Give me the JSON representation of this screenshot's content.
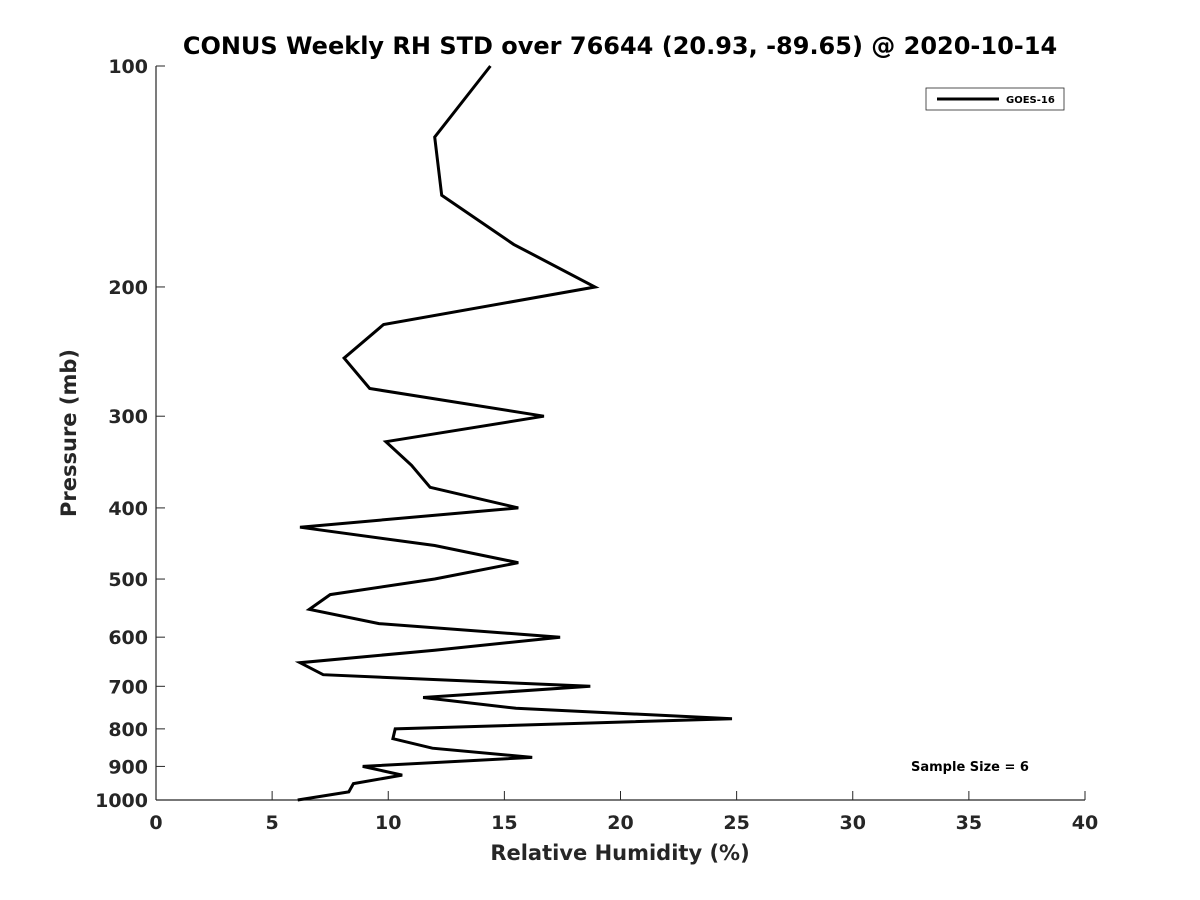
{
  "chart_data": {
    "type": "line",
    "title": "CONUS Weekly RH STD over 76644 (20.93, -89.65) @ 2020-10-14",
    "xlabel": "Relative Humidity (%)",
    "ylabel": "Pressure (mb)",
    "xlim": [
      0,
      40
    ],
    "ylim": [
      100,
      1000
    ],
    "y_scale": "log",
    "y_reversed": true,
    "x_ticks": [
      0,
      5,
      10,
      15,
      20,
      25,
      30,
      35,
      40
    ],
    "y_ticks": [
      100,
      200,
      300,
      400,
      500,
      600,
      700,
      800,
      900,
      1000
    ],
    "grid": false,
    "legend_position": "top-right",
    "series": [
      {
        "name": "GOES-16",
        "color": "#000000",
        "points": [
          {
            "p": 100,
            "rh": 14.4
          },
          {
            "p": 125,
            "rh": 12.0
          },
          {
            "p": 150,
            "rh": 12.3
          },
          {
            "p": 175,
            "rh": 15.4
          },
          {
            "p": 200,
            "rh": 18.9
          },
          {
            "p": 225,
            "rh": 9.8
          },
          {
            "p": 250,
            "rh": 8.1
          },
          {
            "p": 275,
            "rh": 9.2
          },
          {
            "p": 300,
            "rh": 16.7
          },
          {
            "p": 325,
            "rh": 9.9
          },
          {
            "p": 350,
            "rh": 11.0
          },
          {
            "p": 375,
            "rh": 11.8
          },
          {
            "p": 400,
            "rh": 15.6
          },
          {
            "p": 425,
            "rh": 6.2
          },
          {
            "p": 450,
            "rh": 12.0
          },
          {
            "p": 475,
            "rh": 15.6
          },
          {
            "p": 500,
            "rh": 12.0
          },
          {
            "p": 525,
            "rh": 7.5
          },
          {
            "p": 550,
            "rh": 6.6
          },
          {
            "p": 575,
            "rh": 9.6
          },
          {
            "p": 600,
            "rh": 17.4
          },
          {
            "p": 625,
            "rh": 12.0
          },
          {
            "p": 650,
            "rh": 6.2
          },
          {
            "p": 675,
            "rh": 7.2
          },
          {
            "p": 700,
            "rh": 18.7
          },
          {
            "p": 725,
            "rh": 11.5
          },
          {
            "p": 750,
            "rh": 15.5
          },
          {
            "p": 775,
            "rh": 24.8
          },
          {
            "p": 800,
            "rh": 10.3
          },
          {
            "p": 825,
            "rh": 10.2
          },
          {
            "p": 850,
            "rh": 11.9
          },
          {
            "p": 875,
            "rh": 16.2
          },
          {
            "p": 900,
            "rh": 8.9
          },
          {
            "p": 925,
            "rh": 10.6
          },
          {
            "p": 950,
            "rh": 8.5
          },
          {
            "p": 975,
            "rh": 8.3
          },
          {
            "p": 1000,
            "rh": 6.1
          }
        ]
      }
    ],
    "annotation": "Sample Size = 6"
  }
}
